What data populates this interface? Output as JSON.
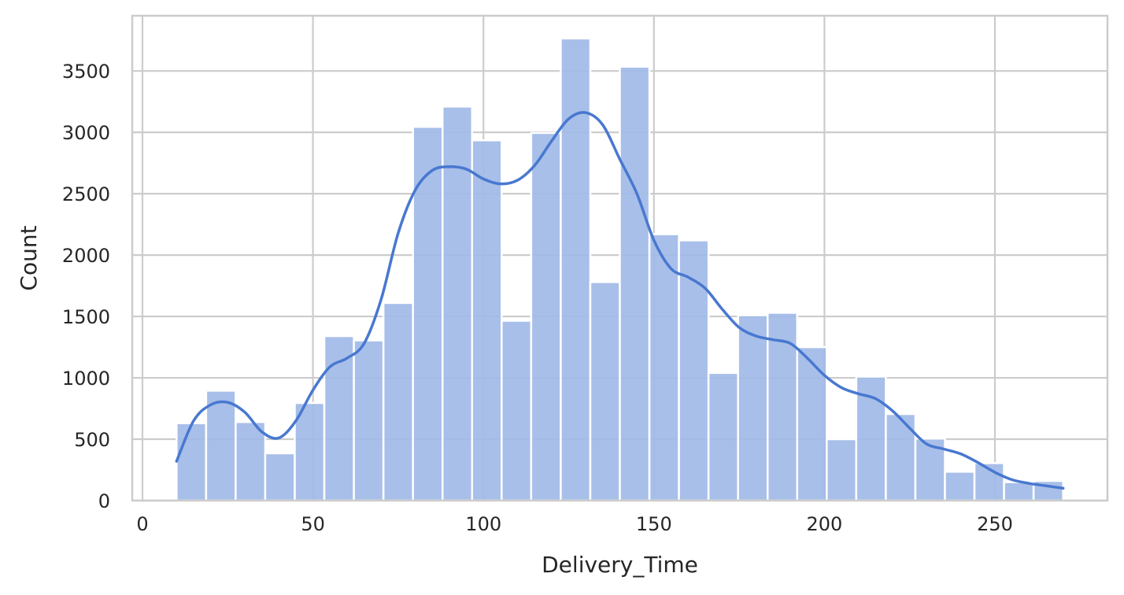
{
  "chart_data": {
    "type": "bar",
    "subtype": "histogram-with-kde",
    "title": "",
    "xlabel": "Delivery_Time",
    "ylabel": "Count",
    "xlim": [
      -3,
      283
    ],
    "ylim": [
      0,
      3950
    ],
    "x_ticks": [
      0,
      50,
      100,
      150,
      200,
      250
    ],
    "y_ticks": [
      0,
      500,
      1000,
      1500,
      2000,
      2500,
      3000,
      3500
    ],
    "grid": true,
    "legend": "none",
    "colors": {
      "bar_fill": "#a1bae7",
      "bar_edge": "#ffffff",
      "kde_line": "#4878d0",
      "grid": "#cccccc",
      "frame": "#cccccc",
      "text": "#262626"
    },
    "bin_edges": [
      10,
      18.667,
      27.333,
      36,
      44.667,
      53.333,
      62,
      70.667,
      79.333,
      88,
      96.667,
      105.333,
      114,
      122.667,
      131.333,
      140,
      148.667,
      157.333,
      166,
      174.667,
      183.333,
      192,
      200.667,
      209.333,
      218,
      226.667,
      235.333,
      244,
      252.667,
      261.333,
      270
    ],
    "bins": [
      630,
      895,
      640,
      385,
      795,
      1340,
      1305,
      1610,
      3045,
      3210,
      2935,
      1465,
      2995,
      3765,
      1780,
      3535,
      2170,
      2120,
      1040,
      1510,
      1530,
      1250,
      500,
      1010,
      705,
      505,
      235,
      305,
      150,
      160
    ],
    "kde": {
      "x": [
        10,
        15,
        20,
        25,
        30,
        35,
        40,
        45,
        50,
        55,
        60,
        65,
        70,
        75,
        80,
        85,
        90,
        95,
        100,
        105,
        110,
        115,
        120,
        125,
        130,
        135,
        140,
        145,
        150,
        155,
        160,
        165,
        170,
        175,
        180,
        185,
        190,
        195,
        200,
        205,
        210,
        215,
        220,
        225,
        230,
        235,
        240,
        245,
        250,
        255,
        260,
        265,
        270
      ],
      "y": [
        320,
        650,
        780,
        800,
        720,
        560,
        510,
        650,
        900,
        1090,
        1160,
        1280,
        1640,
        2180,
        2530,
        2690,
        2720,
        2700,
        2620,
        2580,
        2610,
        2730,
        2930,
        3110,
        3160,
        3060,
        2780,
        2500,
        2120,
        1890,
        1820,
        1730,
        1560,
        1410,
        1340,
        1310,
        1280,
        1160,
        1020,
        920,
        870,
        830,
        730,
        590,
        460,
        420,
        380,
        310,
        230,
        170,
        140,
        120,
        100
      ]
    }
  }
}
